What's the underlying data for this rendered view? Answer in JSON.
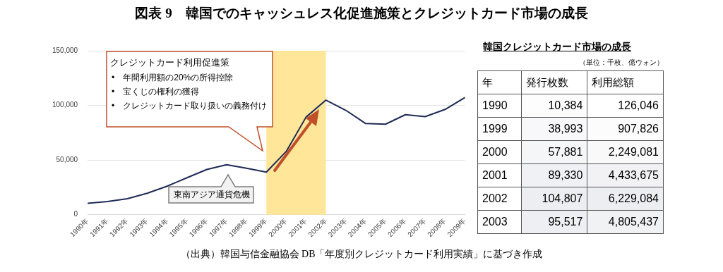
{
  "chart_data": [
    {
      "type": "line",
      "title": "図表 9　韓国でのキャッシュレス化促進施策とクレジットカード市場の成長",
      "categories": [
        "1990年",
        "1991年",
        "1992年",
        "1993年",
        "1994年",
        "1995年",
        "1996年",
        "1997年",
        "1998年",
        "1999年",
        "2000年",
        "2001年",
        "2002年",
        "2003年",
        "2004年",
        "2005年",
        "2006年",
        "2007年",
        "2008年",
        "2009年"
      ],
      "series": [
        {
          "color": "#1f2a56",
          "values": [
            10384,
            12000,
            14600,
            19600,
            26100,
            33800,
            41400,
            45700,
            42500,
            38993,
            57881,
            89330,
            104807,
            95517,
            83400,
            82800,
            91500,
            89700,
            96300,
            107200
          ]
        }
      ],
      "ylim": [
        0,
        150000
      ],
      "yticks": [
        {
          "value": 0,
          "label": "0"
        },
        {
          "value": 50000,
          "label": "50,000"
        },
        {
          "value": 100000,
          "label": "100,000"
        },
        {
          "value": 150000,
          "label": "150,000"
        }
      ],
      "grid": "y",
      "legend": false,
      "marker": "none",
      "line_style": "solid",
      "bands": [
        {
          "axis": "x",
          "from": "1999年",
          "to": "2002年",
          "color": "#ffe699"
        }
      ],
      "annotations": [
        "クレジットカード利用促進策",
        "•　年間利用額の20%の所得控除",
        "•　宝くじの権利の獲得",
        "•　クレジットカード取り扱いの義務付け",
        "東南アジア通貨危機",
        "（出典）韓国与信金融協会 DB「年度別クレジットカード利用実績」に基づき作成"
      ]
    },
    {
      "type": "heatmap",
      "title": "韓国クレジットカード市場の成長",
      "subtitle": "（単位：千枚、億ウォン）",
      "ylabel": "年",
      "categories": [
        "発行枚数",
        "利用総額"
      ],
      "y_categories": [
        "1990",
        "1999",
        "2000",
        "2001",
        "2002",
        "2003"
      ],
      "cells": [
        [
          10384,
          126046
        ],
        [
          38993,
          907826
        ],
        [
          57881,
          2249081
        ],
        [
          89330,
          4433675
        ],
        [
          104807,
          6229084
        ],
        [
          95517,
          4805437
        ]
      ],
      "cell_labels": [
        [
          "10,384",
          "126,046"
        ],
        [
          "38,993",
          "907,826"
        ],
        [
          "57,881",
          "2,249,081"
        ],
        [
          "89,330",
          "4,433,675"
        ],
        [
          "104,807",
          "6,229,084"
        ],
        [
          "95,517",
          "4,805,437"
        ]
      ]
    }
  ]
}
